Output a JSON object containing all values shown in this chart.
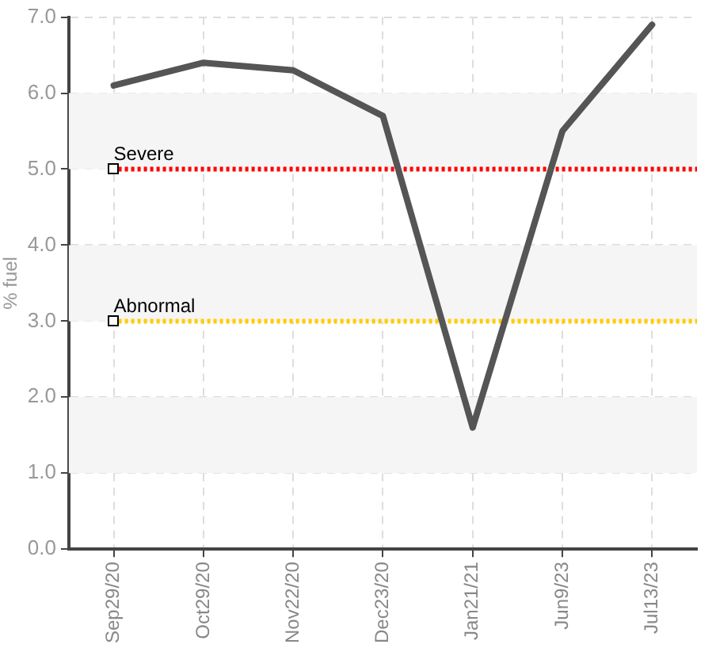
{
  "chart_data": {
    "type": "line",
    "ylabel": "% fuel",
    "categories": [
      "Sep29/20",
      "Oct29/20",
      "Nov22/20",
      "Dec23/20",
      "Jan21/21",
      "Jun9/23",
      "Jul13/23"
    ],
    "series": [
      {
        "color": "#555555",
        "values": [
          6.1,
          6.4,
          6.3,
          5.7,
          1.6,
          5.5,
          6.9
        ]
      }
    ],
    "ylim": [
      0,
      7
    ],
    "yticks": [
      {
        "value": 0,
        "label": "0.0"
      },
      {
        "value": 1,
        "label": "1.0"
      },
      {
        "value": 2,
        "label": "2.0"
      },
      {
        "value": 3,
        "label": "3.0"
      },
      {
        "value": 4,
        "label": "4.0"
      },
      {
        "value": 5,
        "label": "5.0"
      },
      {
        "value": 6,
        "label": "6.0"
      },
      {
        "value": 7,
        "label": "7.0"
      }
    ],
    "grid": true,
    "legend": false,
    "marker": "none",
    "line_style": "solid",
    "ref_lines": [
      {
        "axis": "y",
        "value": 5,
        "label": "Severe",
        "color": "#ff0000",
        "line_style": "dotted"
      },
      {
        "axis": "y",
        "value": 3,
        "label": "Abnormal",
        "color": "#ffcc00",
        "line_style": "dotted"
      }
    ],
    "bands": [
      {
        "axis": "y",
        "from": 1,
        "to": 2,
        "color": "#f5f5f5"
      },
      {
        "axis": "y",
        "from": 3,
        "to": 4,
        "color": "#f5f5f5"
      },
      {
        "axis": "y",
        "from": 5,
        "to": 6,
        "color": "#f5f5f5"
      }
    ]
  }
}
